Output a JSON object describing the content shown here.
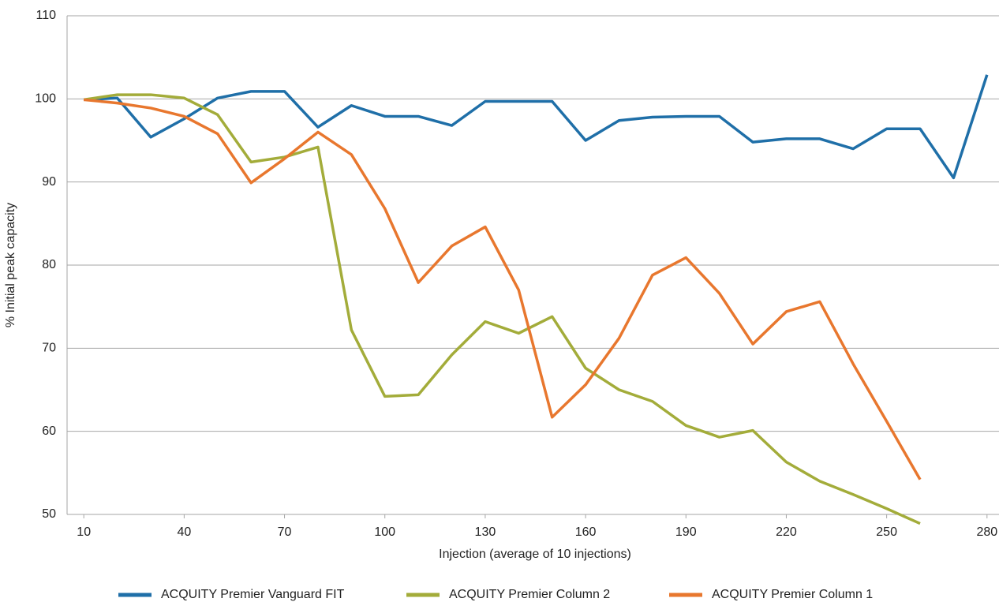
{
  "chart_data": {
    "type": "line",
    "x_label": "Injection (average of 10 injections)",
    "y_label": "% Initial peak capacity",
    "x": [
      10,
      20,
      30,
      40,
      50,
      60,
      70,
      80,
      90,
      100,
      110,
      120,
      130,
      140,
      150,
      160,
      170,
      180,
      190,
      200,
      210,
      220,
      230,
      240,
      250,
      260,
      270,
      280
    ],
    "series": [
      {
        "name": "ACQUITY Premier Vanguard FIT",
        "color": "#1f6fa8",
        "values": [
          99.9,
          100.1,
          95.4,
          97.6,
          100.1,
          100.9,
          100.9,
          96.6,
          99.2,
          97.9,
          97.9,
          96.8,
          99.7,
          99.7,
          99.7,
          95.0,
          97.4,
          97.8,
          97.9,
          97.9,
          94.8,
          95.2,
          95.2,
          94.0,
          96.4,
          96.4,
          90.5,
          102.9
        ]
      },
      {
        "name": "ACQUITY Premier Column 2",
        "color": "#a3ac3a",
        "values": [
          99.9,
          100.5,
          100.5,
          100.1,
          98.1,
          92.4,
          93.0,
          94.2,
          72.2,
          64.2,
          64.4,
          69.2,
          73.2,
          71.8,
          73.8,
          67.6,
          65.0,
          63.6,
          60.7,
          59.3,
          60.1,
          56.3,
          54.0,
          52.4,
          50.7,
          48.9,
          null,
          null
        ]
      },
      {
        "name": "ACQUITY Premier Column 1",
        "color": "#e8772e",
        "values": [
          99.9,
          99.5,
          98.9,
          97.9,
          95.8,
          89.9,
          92.8,
          96.0,
          93.3,
          86.8,
          77.9,
          82.3,
          84.6,
          77.0,
          61.7,
          65.6,
          71.2,
          78.8,
          80.9,
          76.6,
          70.5,
          74.4,
          75.6,
          68.1,
          61.2,
          54.2,
          null,
          null
        ]
      }
    ],
    "xlim": [
      5,
      285
    ],
    "xticks": [
      10,
      40,
      70,
      100,
      130,
      160,
      190,
      220,
      250,
      280
    ],
    "ylim": [
      50,
      110
    ],
    "yticks": [
      50,
      60,
      70,
      80,
      90,
      100,
      110
    ],
    "grid": true,
    "legend": "bottom"
  }
}
